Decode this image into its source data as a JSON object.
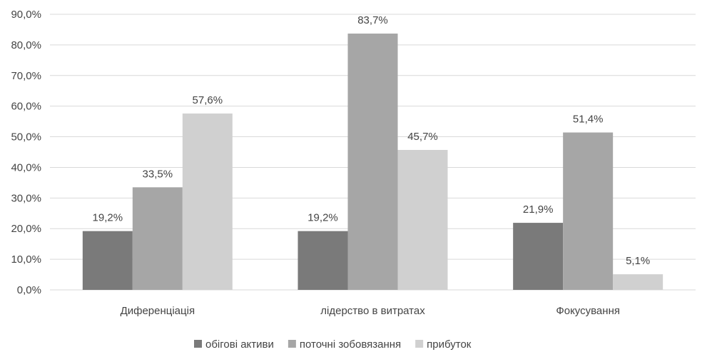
{
  "chart_data": {
    "type": "bar",
    "categories": [
      "Диференціація",
      "лідерство в витратах",
      "Фокусування"
    ],
    "series": [
      {
        "name": "обігові активи",
        "values": [
          19.2,
          19.2,
          21.9
        ],
        "labels": [
          "19,2%",
          "19,2%",
          "21,9%"
        ],
        "color": "#7a7a7a"
      },
      {
        "name": "поточні зобовязання",
        "values": [
          33.5,
          83.7,
          51.4
        ],
        "labels": [
          "33,5%",
          "83,7%",
          "51,4%"
        ],
        "color": "#a6a6a6"
      },
      {
        "name": "прибуток",
        "values": [
          57.6,
          45.7,
          5.1
        ],
        "labels": [
          "57,6%",
          "45,7%",
          "5,1%"
        ],
        "color": "#d0d0d0"
      }
    ],
    "ylim": [
      0,
      90
    ],
    "yticks": [
      "0,0%",
      "10,0%",
      "20,0%",
      "30,0%",
      "40,0%",
      "50,0%",
      "60,0%",
      "70,0%",
      "80,0%",
      "90,0%"
    ],
    "grid": true,
    "legend_position": "bottom",
    "gridline_color": "#d9d9d9"
  }
}
